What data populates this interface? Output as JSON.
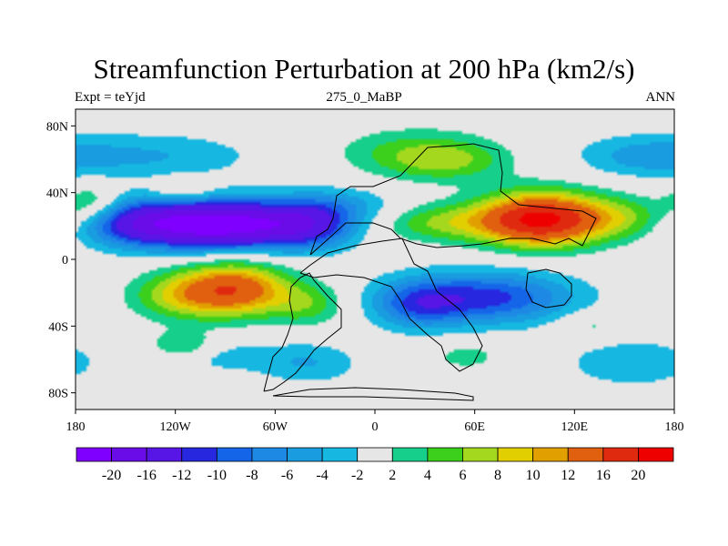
{
  "chart_data": {
    "type": "heatmap",
    "title": "Streamfunction Perturbation at 200 hPa (km2/s)",
    "left_string": "Expt = teYjd",
    "center_string": "275_0_MaBP",
    "right_string": "ANN",
    "x_ticks": [
      {
        "value": -180,
        "label": "180"
      },
      {
        "value": -120,
        "label": "120W"
      },
      {
        "value": -60,
        "label": "60W"
      },
      {
        "value": 0,
        "label": "0"
      },
      {
        "value": 60,
        "label": "60E"
      },
      {
        "value": 120,
        "label": "120E"
      },
      {
        "value": 180,
        "label": "180"
      }
    ],
    "y_ticks": [
      {
        "value": 80,
        "label": "80N"
      },
      {
        "value": 40,
        "label": "40N"
      },
      {
        "value": 0,
        "label": "0"
      },
      {
        "value": -40,
        "label": "40S"
      },
      {
        "value": -80,
        "label": "80S"
      }
    ],
    "xlim": [
      -180,
      180
    ],
    "ylim": [
      -90,
      90
    ],
    "levels": [
      -20,
      -16,
      -12,
      -10,
      -8,
      -6,
      -4,
      -2,
      2,
      4,
      6,
      8,
      10,
      12,
      16,
      20
    ],
    "level_labels": [
      "-20",
      "-16",
      "-12",
      "-10",
      "-8",
      "-6",
      "-4",
      "-2",
      "2",
      "4",
      "6",
      "8",
      "10",
      "12",
      "16",
      "20"
    ],
    "colors": [
      "#7f00ff",
      "#6a0ce8",
      "#5716e6",
      "#2727e0",
      "#1565e8",
      "#1e88e5",
      "#199ce0",
      "#16b8e2",
      "#e6e6e6",
      "#16cf8a",
      "#3ccf1c",
      "#a4d81e",
      "#e2cf02",
      "#e2a000",
      "#e06010",
      "#e02a10",
      "#ee0000"
    ],
    "anomalies": [
      {
        "lon": -95,
        "lat": 21,
        "amp": -23,
        "slon": 38,
        "slat": 10
      },
      {
        "lon": -145,
        "lat": 22,
        "amp": -7,
        "slon": 22,
        "slat": 10
      },
      {
        "lon": -40,
        "lat": 20,
        "amp": -8,
        "slon": 20,
        "slat": 10
      },
      {
        "lon": -20,
        "lat": 32,
        "amp": -4,
        "slon": 25,
        "slat": 8
      },
      {
        "lon": -85,
        "lat": -18,
        "amp": 15,
        "slon": 23,
        "slat": 11
      },
      {
        "lon": -120,
        "lat": -22,
        "amp": 6,
        "slon": 20,
        "slat": 10
      },
      {
        "lon": -40,
        "lat": -27,
        "amp": 5,
        "slon": 16,
        "slat": 9
      },
      {
        "lon": -115,
        "lat": -52,
        "amp": 5,
        "slon": 14,
        "slat": 6
      },
      {
        "lon": -95,
        "lat": -58,
        "amp": -3,
        "slon": 24,
        "slat": 7
      },
      {
        "lon": -40,
        "lat": -62,
        "amp": -4,
        "slon": 22,
        "slat": 9
      },
      {
        "lon": 100,
        "lat": 24,
        "amp": 21,
        "slon": 26,
        "slat": 11
      },
      {
        "lon": 40,
        "lat": 22,
        "amp": 6,
        "slon": 28,
        "slat": 8
      },
      {
        "lon": 150,
        "lat": 25,
        "amp": 5,
        "slon": 20,
        "slat": 9
      },
      {
        "lon": 25,
        "lat": 64,
        "amp": 5,
        "slon": 32,
        "slat": 10
      },
      {
        "lon": 45,
        "lat": 58,
        "amp": 4,
        "slon": 25,
        "slat": 8
      },
      {
        "lon": -135,
        "lat": 62,
        "amp": -4,
        "slon": 45,
        "slat": 10
      },
      {
        "lon": 160,
        "lat": 62,
        "amp": -4,
        "slon": 28,
        "slat": 9
      },
      {
        "lon": -170,
        "lat": 33,
        "amp": 5,
        "slon": 12,
        "slat": 8
      },
      {
        "lon": -115,
        "lat": 42,
        "amp": 4,
        "slon": 12,
        "slat": 5
      },
      {
        "lon": 65,
        "lat": -23,
        "amp": -11,
        "slon": 38,
        "slat": 11
      },
      {
        "lon": 25,
        "lat": -28,
        "amp": -6,
        "slon": 18,
        "slat": 10
      },
      {
        "lon": 155,
        "lat": -62,
        "amp": -4,
        "slon": 28,
        "slat": 10
      },
      {
        "lon": 55,
        "lat": -58,
        "amp": 3,
        "slon": 15,
        "slat": 6
      },
      {
        "lon": 130,
        "lat": -40,
        "amp": 3,
        "slon": 14,
        "slat": 6
      }
    ]
  }
}
